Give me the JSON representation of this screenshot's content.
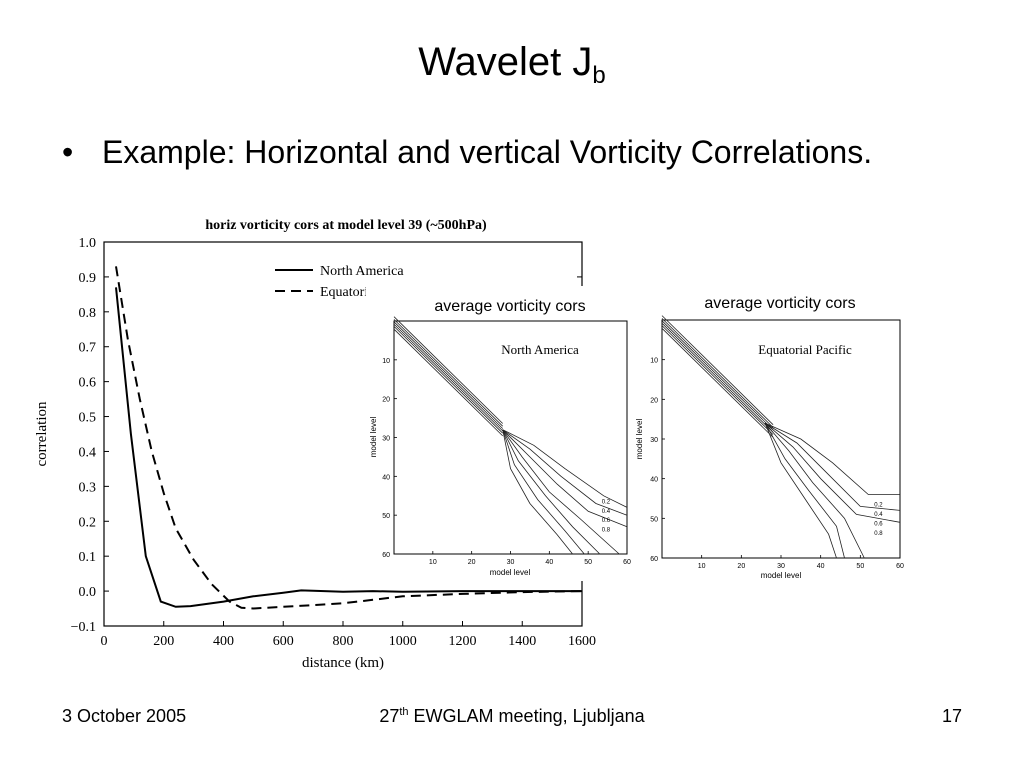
{
  "slide": {
    "title_main": "Wavelet J",
    "title_sub": "b",
    "bullet_symbol": "•",
    "bullet_text": "Example: Horizontal and vertical Vorticity Correlations."
  },
  "footer": {
    "date": "3 October 2005",
    "meeting_sup": "th",
    "meeting_prefix": "27",
    "meeting_rest": " EWGLAM meeting, Ljubljana",
    "page_number": "17"
  },
  "chart_data": [
    {
      "type": "line",
      "title": "horiz vorticity cors at model level 39 (~500hPa)",
      "xlabel": "distance (km)",
      "ylabel": "correlation",
      "xlim": [
        0,
        1600
      ],
      "ylim": [
        -0.1,
        1.0
      ],
      "x_ticks": [
        "0",
        "200",
        "400",
        "600",
        "800",
        "1000",
        "1200",
        "1400",
        "1600"
      ],
      "y_ticks": [
        "−0.1",
        "0.0",
        "0.1",
        "0.2",
        "0.3",
        "0.4",
        "0.5",
        "0.6",
        "0.7",
        "0.8",
        "0.9",
        "1.0"
      ],
      "legend_position": "top-right",
      "series": [
        {
          "name": "North America",
          "style": "solid",
          "x": [
            40,
            90,
            140,
            190,
            240,
            290,
            400,
            500,
            600,
            660,
            700,
            800,
            900,
            1000,
            1200,
            1400,
            1600
          ],
          "y": [
            0.87,
            0.45,
            0.1,
            -0.03,
            -0.045,
            -0.043,
            -0.03,
            -0.015,
            -0.005,
            0.002,
            0.001,
            -0.002,
            0.0,
            -0.002,
            0.0,
            0.0,
            0.0
          ]
        },
        {
          "name": "Equatorial Pacific",
          "style": "dashed",
          "x": [
            40,
            80,
            120,
            160,
            200,
            240,
            300,
            360,
            420,
            460,
            500,
            600,
            700,
            800,
            900,
            1000,
            1200,
            1400,
            1600
          ],
          "y": [
            0.93,
            0.72,
            0.55,
            0.4,
            0.28,
            0.18,
            0.09,
            0.02,
            -0.03,
            -0.048,
            -0.05,
            -0.045,
            -0.04,
            -0.035,
            -0.025,
            -0.015,
            -0.008,
            -0.003,
            0.0
          ]
        }
      ]
    },
    {
      "type": "contour",
      "title": "average vorticity cors",
      "panel_label": "North America",
      "xlabel": "model level",
      "ylabel": "model level",
      "xlim": [
        0,
        60
      ],
      "ylim": [
        60,
        0
      ],
      "x_ticks": [
        "10",
        "20",
        "30",
        "40",
        "50",
        "60"
      ],
      "y_ticks": [
        "10",
        "20",
        "30",
        "40",
        "50",
        "60"
      ],
      "contour_labels": [
        "0.2",
        "0.4",
        "0.6",
        "0.8"
      ]
    },
    {
      "type": "contour",
      "title": "average vorticity cors",
      "panel_label": "Equatorial Pacific",
      "xlabel": "model level",
      "ylabel": "model level",
      "xlim": [
        0,
        60
      ],
      "ylim": [
        60,
        0
      ],
      "x_ticks": [
        "10",
        "20",
        "30",
        "40",
        "50",
        "60"
      ],
      "y_ticks": [
        "10",
        "20",
        "30",
        "40",
        "50",
        "60"
      ],
      "contour_labels": [
        "0.2",
        "0.4",
        "0.6",
        "0.8"
      ]
    }
  ]
}
